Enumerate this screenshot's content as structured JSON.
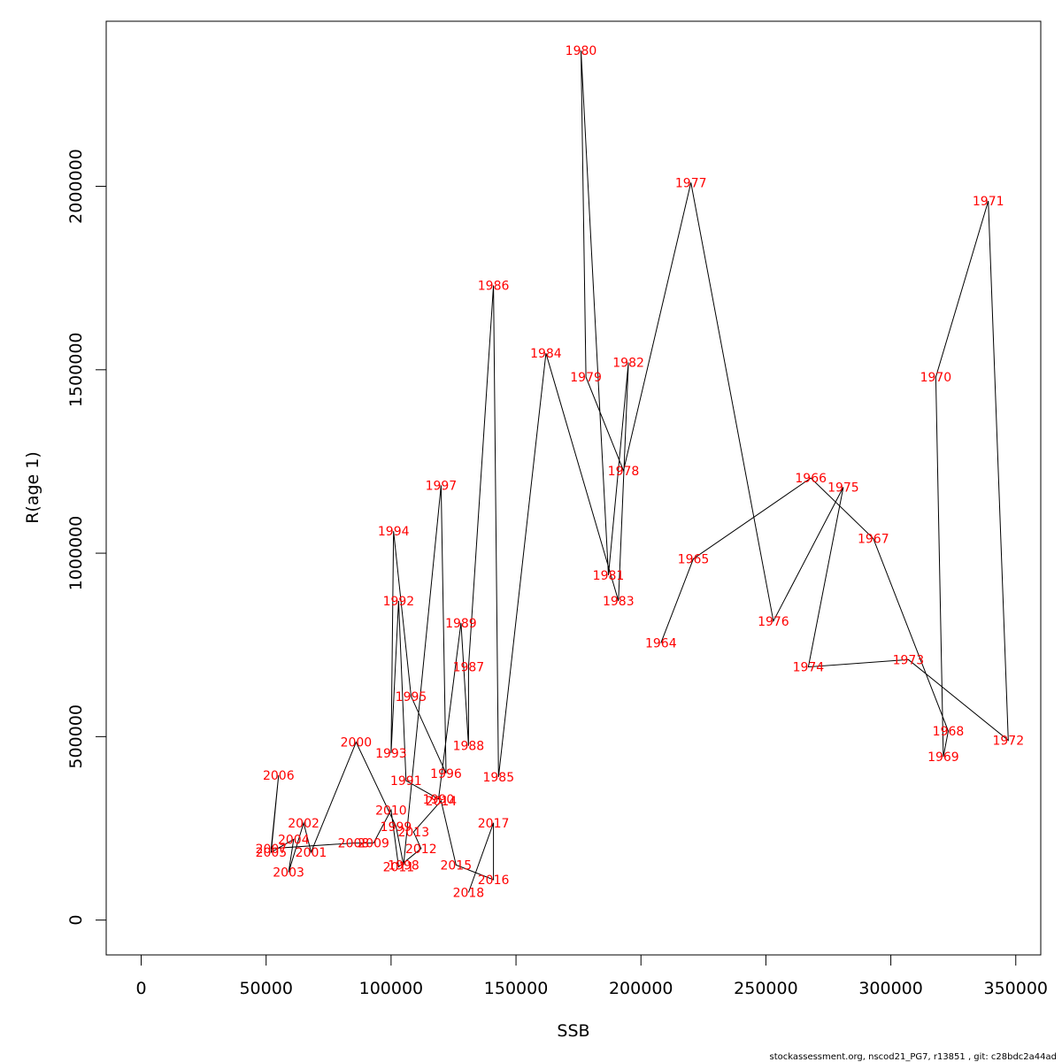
{
  "chart_data": {
    "type": "line",
    "xlabel": "SSB",
    "ylabel": "R(age 1)",
    "xlim": [
      -14000,
      360000
    ],
    "ylim": [
      -95000,
      2450000
    ],
    "x_ticks": [
      {
        "value": 0,
        "label": "0"
      },
      {
        "value": 50000,
        "label": "50000"
      },
      {
        "value": 100000,
        "label": "100000"
      },
      {
        "value": 150000,
        "label": "150000"
      },
      {
        "value": 200000,
        "label": "200000"
      },
      {
        "value": 250000,
        "label": "250000"
      },
      {
        "value": 300000,
        "label": "300000"
      },
      {
        "value": 350000,
        "label": "350000"
      }
    ],
    "y_ticks": [
      {
        "value": 0,
        "label": "0"
      },
      {
        "value": 500000,
        "label": "500000"
      },
      {
        "value": 1000000,
        "label": "1000000"
      },
      {
        "value": 1500000,
        "label": "1500000"
      },
      {
        "value": 2000000,
        "label": "2000000"
      }
    ],
    "points": [
      {
        "label": "1964",
        "ssb": 208000,
        "r": 755000
      },
      {
        "label": "1965",
        "ssb": 221000,
        "r": 985000
      },
      {
        "label": "1966",
        "ssb": 268000,
        "r": 1205000
      },
      {
        "label": "1967",
        "ssb": 293000,
        "r": 1040000
      },
      {
        "label": "1968",
        "ssb": 323000,
        "r": 515000
      },
      {
        "label": "1969",
        "ssb": 321000,
        "r": 445000
      },
      {
        "label": "1970",
        "ssb": 318000,
        "r": 1480000
      },
      {
        "label": "1971",
        "ssb": 339000,
        "r": 1960000
      },
      {
        "label": "1972",
        "ssb": 347000,
        "r": 490000
      },
      {
        "label": "1973",
        "ssb": 307000,
        "r": 710000
      },
      {
        "label": "1974",
        "ssb": 267000,
        "r": 690000
      },
      {
        "label": "1975",
        "ssb": 281000,
        "r": 1180000
      },
      {
        "label": "1976",
        "ssb": 253000,
        "r": 815000
      },
      {
        "label": "1977",
        "ssb": 220000,
        "r": 2010000
      },
      {
        "label": "1978",
        "ssb": 193000,
        "r": 1225000
      },
      {
        "label": "1979",
        "ssb": 178000,
        "r": 1480000
      },
      {
        "label": "1980",
        "ssb": 176000,
        "r": 2370000
      },
      {
        "label": "1981",
        "ssb": 187000,
        "r": 940000
      },
      {
        "label": "1982",
        "ssb": 195000,
        "r": 1520000
      },
      {
        "label": "1983",
        "ssb": 191000,
        "r": 870000
      },
      {
        "label": "1984",
        "ssb": 162000,
        "r": 1545000
      },
      {
        "label": "1985",
        "ssb": 143000,
        "r": 390000
      },
      {
        "label": "1986",
        "ssb": 141000,
        "r": 1730000
      },
      {
        "label": "1987",
        "ssb": 131000,
        "r": 690000
      },
      {
        "label": "1988",
        "ssb": 131000,
        "r": 475000
      },
      {
        "label": "1989",
        "ssb": 128000,
        "r": 810000
      },
      {
        "label": "1990",
        "ssb": 119000,
        "r": 330000
      },
      {
        "label": "1991",
        "ssb": 106000,
        "r": 380000
      },
      {
        "label": "1992",
        "ssb": 103000,
        "r": 870000
      },
      {
        "label": "1993",
        "ssb": 100000,
        "r": 455000
      },
      {
        "label": "1994",
        "ssb": 101000,
        "r": 1060000
      },
      {
        "label": "1995",
        "ssb": 108000,
        "r": 610000
      },
      {
        "label": "1996",
        "ssb": 122000,
        "r": 400000
      },
      {
        "label": "1997",
        "ssb": 120000,
        "r": 1185000
      },
      {
        "label": "1998",
        "ssb": 105000,
        "r": 150000
      },
      {
        "label": "1999",
        "ssb": 102000,
        "r": 255000
      },
      {
        "label": "2000",
        "ssb": 86000,
        "r": 485000
      },
      {
        "label": "2001",
        "ssb": 68000,
        "r": 185000
      },
      {
        "label": "2002",
        "ssb": 65000,
        "r": 265000
      },
      {
        "label": "2003",
        "ssb": 59000,
        "r": 130000
      },
      {
        "label": "2004",
        "ssb": 61000,
        "r": 220000
      },
      {
        "label": "2005",
        "ssb": 52000,
        "r": 185000
      },
      {
        "label": "2006",
        "ssb": 55000,
        "r": 395000
      },
      {
        "label": "2007",
        "ssb": 52000,
        "r": 195000
      },
      {
        "label": "2008",
        "ssb": 85000,
        "r": 210000
      },
      {
        "label": "2009",
        "ssb": 93000,
        "r": 210000
      },
      {
        "label": "2010",
        "ssb": 100000,
        "r": 300000
      },
      {
        "label": "2011",
        "ssb": 103000,
        "r": 145000
      },
      {
        "label": "2012",
        "ssb": 112000,
        "r": 195000
      },
      {
        "label": "2013",
        "ssb": 109000,
        "r": 240000
      },
      {
        "label": "2014",
        "ssb": 120000,
        "r": 325000
      },
      {
        "label": "2015",
        "ssb": 126000,
        "r": 150000
      },
      {
        "label": "2016",
        "ssb": 141000,
        "r": 110000
      },
      {
        "label": "2017",
        "ssb": 141000,
        "r": 265000
      },
      {
        "label": "2018",
        "ssb": 131000,
        "r": 75000
      }
    ]
  },
  "footer": "stockassessment.org, nscod21_PG7, r13851 , git: c28bdc2a44ad"
}
